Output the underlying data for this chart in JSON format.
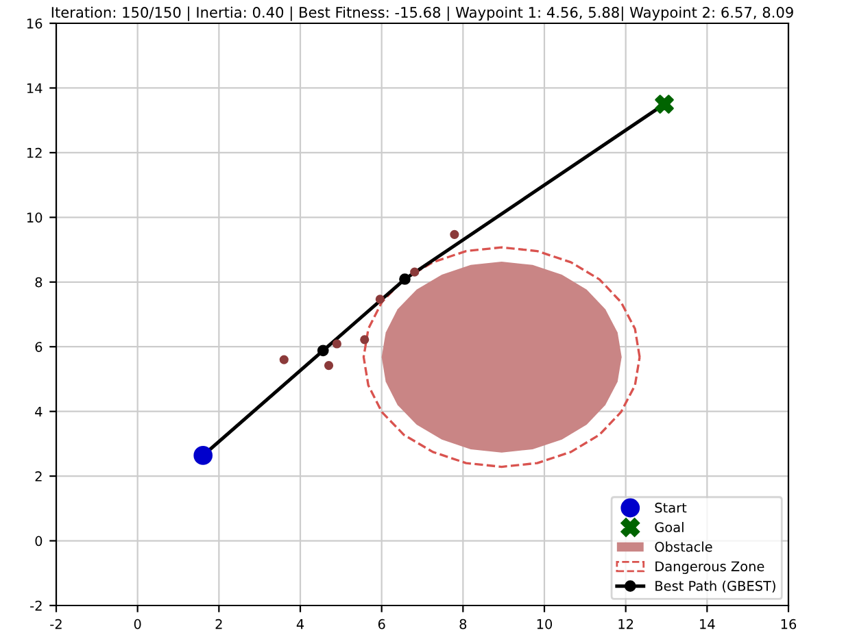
{
  "chart_data": {
    "type": "scatter",
    "title": "Iteration: 150/150 | Inertia: 0.40 | Best Fitness: -15.68 | Waypoint 1: 4.56, 5.88| Waypoint 2: 6.57, 8.09",
    "xlim": [
      -2,
      16
    ],
    "ylim": [
      -2,
      16
    ],
    "xticks": [
      -2,
      0,
      2,
      4,
      6,
      8,
      10,
      12,
      14,
      16
    ],
    "yticks": [
      -2,
      0,
      2,
      4,
      6,
      8,
      10,
      12,
      14,
      16
    ],
    "grid": true,
    "legend": "bottom right",
    "series": [
      {
        "name": "Dangerous Zone",
        "type": "line",
        "color": "#d9534f",
        "line_style": "dashed",
        "marker": "none"
      },
      {
        "name": "Obstacle",
        "type": "area",
        "color": "#c98585",
        "x": [
          11.9,
          11.8,
          11.5,
          11.04,
          10.43,
          9.71,
          8.95,
          8.19,
          7.48,
          6.86,
          6.39,
          6.1,
          6.0,
          6.1,
          6.39,
          6.86,
          7.48,
          8.19,
          8.95,
          9.71,
          10.43,
          11.04,
          11.5,
          11.8,
          11.9
        ],
        "values": [
          5.68,
          6.44,
          7.16,
          7.77,
          8.23,
          8.53,
          8.63,
          8.53,
          8.23,
          7.77,
          7.16,
          6.44,
          5.68,
          4.92,
          4.2,
          3.59,
          3.13,
          2.83,
          2.73,
          2.83,
          3.13,
          3.59,
          4.2,
          4.92,
          5.68
        ]
      },
      {
        "type": "scatter",
        "color": "#8b3a3a",
        "marker": "circle",
        "x": [
          3.6,
          4.7,
          4.9,
          5.58,
          5.96,
          6.81,
          7.79
        ],
        "values": [
          5.6,
          5.42,
          6.09,
          6.22,
          7.47,
          8.31,
          9.47
        ]
      },
      {
        "name": "Best Path (GBEST)",
        "type": "line",
        "color": "#000000",
        "marker": "circle",
        "line_style": "solid",
        "x": [
          1.61,
          4.56,
          6.57,
          12.95
        ],
        "values": [
          2.64,
          5.88,
          8.09,
          13.5
        ]
      },
      {
        "name": "Start",
        "color": "#0000cc",
        "marker": "circle",
        "x": [
          1.61
        ],
        "values": [
          2.64
        ]
      },
      {
        "name": "Goal",
        "color": "#006400",
        "marker": "cross",
        "x": [
          12.95
        ],
        "values": [
          13.5
        ]
      }
    ]
  }
}
